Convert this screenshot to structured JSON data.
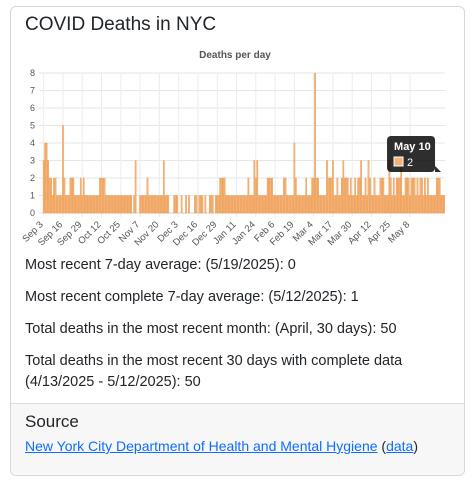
{
  "title": "COVID Deaths in NYC",
  "chart_data": {
    "type": "bar",
    "title": "Deaths per day",
    "xlabel": "",
    "ylabel": "",
    "ylim": [
      0,
      8
    ],
    "yticks": [
      0,
      1,
      2,
      3,
      4,
      5,
      6,
      7,
      8
    ],
    "xtick_labels": [
      "Sep 3",
      "Sep 16",
      "Sep 29",
      "Oct 12",
      "Oct 25",
      "Nov 7",
      "Nov 20",
      "Dec 3",
      "Dec 16",
      "Dec 29",
      "Jan 11",
      "Jan 24",
      "Feb 6",
      "Feb 19",
      "Mar 4",
      "Mar 17",
      "Mar 30",
      "Apr 12",
      "Apr 25",
      "May 8"
    ],
    "grid": true,
    "bar_color": "#f5b277",
    "bar_edge_color": "#e8913f",
    "start_date": "Sep 3",
    "values": [
      3,
      4,
      4,
      3,
      2,
      2,
      1,
      2,
      2,
      1,
      1,
      1,
      1,
      5,
      2,
      1,
      1,
      1,
      2,
      2,
      2,
      1,
      1,
      1,
      1,
      2,
      1,
      2,
      1,
      1,
      1,
      1,
      1,
      1,
      1,
      1,
      1,
      1,
      2,
      2,
      2,
      2,
      1,
      1,
      1,
      1,
      1,
      1,
      1,
      1,
      1,
      1,
      1,
      1,
      1,
      1,
      1,
      1,
      1,
      1,
      0,
      1,
      3,
      0,
      0,
      1,
      1,
      1,
      1,
      1,
      2,
      1,
      1,
      1,
      1,
      1,
      1,
      1,
      1,
      1,
      1,
      3,
      1,
      1,
      1,
      0,
      0,
      0,
      1,
      1,
      1,
      0,
      0,
      1,
      0,
      0,
      1,
      0,
      1,
      0,
      0,
      0,
      1,
      1,
      0,
      1,
      1,
      1,
      0,
      1,
      0,
      0,
      1,
      1,
      1,
      0,
      1,
      1,
      1,
      2,
      2,
      2,
      2,
      1,
      1,
      1,
      1,
      1,
      1,
      1,
      1,
      1,
      1,
      1,
      1,
      1,
      1,
      1,
      2,
      1,
      1,
      1,
      3,
      2,
      3,
      1,
      1,
      1,
      1,
      1,
      1,
      2,
      2,
      2,
      2,
      1,
      1,
      1,
      1,
      1,
      1,
      1,
      2,
      2,
      1,
      1,
      1,
      1,
      1,
      4,
      2,
      1,
      1,
      1,
      1,
      1,
      1,
      2,
      1,
      1,
      1,
      2,
      2,
      8,
      2,
      2,
      1,
      1,
      1,
      1,
      1,
      3,
      2,
      2,
      2,
      3,
      1,
      1,
      2,
      1,
      1,
      2,
      3,
      2,
      2,
      2,
      1,
      2,
      1,
      1,
      2,
      1,
      2,
      2,
      3,
      1,
      1,
      2,
      1,
      3,
      2,
      1,
      1,
      2,
      1,
      1,
      1,
      2,
      2,
      2,
      1,
      1,
      1,
      3,
      2,
      1,
      2,
      1,
      2,
      2,
      2,
      3,
      1,
      1,
      2,
      2,
      2,
      1,
      2,
      2,
      2,
      1,
      2,
      1,
      2,
      2,
      1,
      2,
      1,
      2,
      1,
      1,
      1,
      1,
      1,
      2,
      2,
      2,
      1,
      1,
      1
    ]
  },
  "tooltip": {
    "date": "May 10",
    "value": "2",
    "bar_index": 249
  },
  "stats": {
    "line1": "Most recent 7-day average: (5/19/2025): 0",
    "line2": "Most recent complete 7-day average: (5/12/2025): 1",
    "line3": "Total deaths in the most recent month: (April, 30 days): 50",
    "line4a": "Total deaths in the most recent 30 days with complete data",
    "line4b": "(4/13/2025 - 5/12/2025): 50"
  },
  "source": {
    "heading": "Source",
    "link_label": "New York City Department of Health and Mental Hygiene",
    "paren_open": " (",
    "data_link_label": "data",
    "paren_close": ")"
  }
}
